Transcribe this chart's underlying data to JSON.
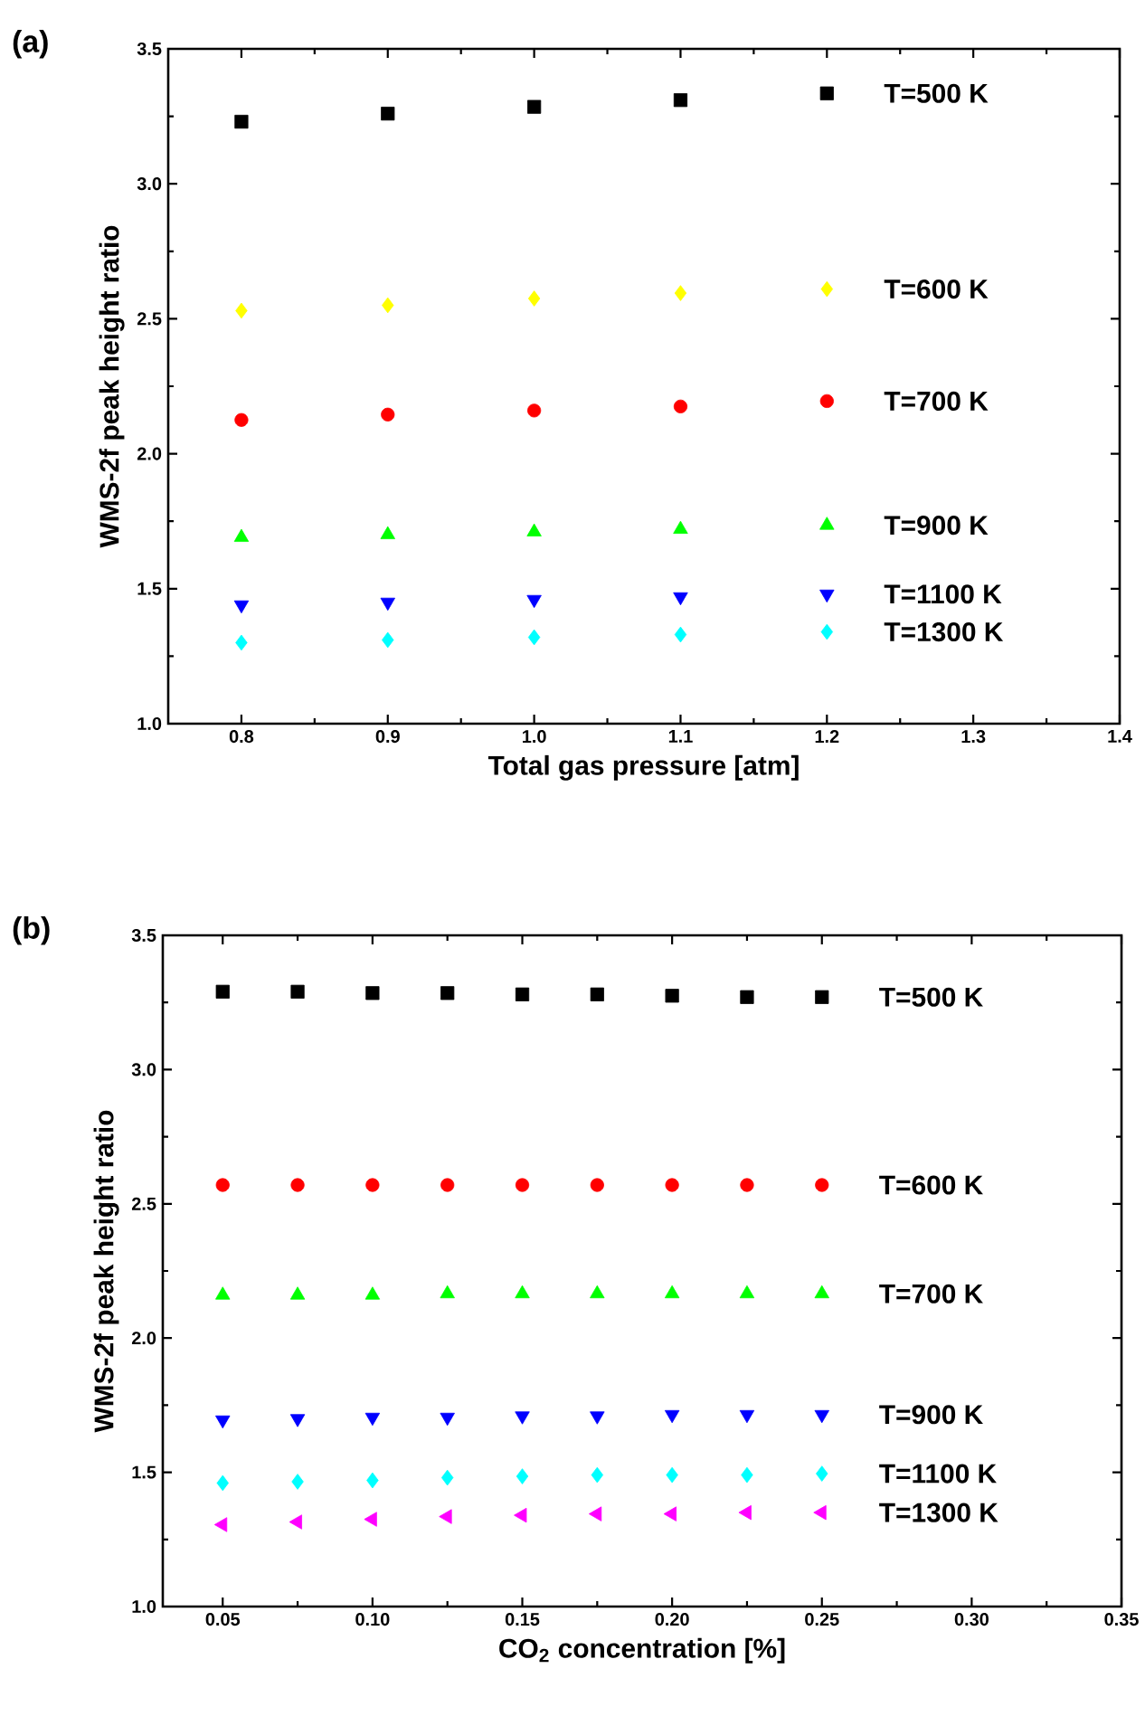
{
  "chart_data": [
    {
      "type": "scatter",
      "xlabel": "Total gas pressure [atm]",
      "ylabel": "WMS-2f peak height ratio",
      "annotations": [
        "(a)"
      ],
      "x": [
        0.8,
        0.9,
        1.0,
        1.1,
        1.2
      ],
      "xlim": [
        0.75,
        1.4
      ],
      "ylim": [
        1.0,
        3.5
      ],
      "xticks": [
        {
          "value": 0.8,
          "label": "0.8"
        },
        {
          "value": 0.9,
          "label": "0.9"
        },
        {
          "value": 1.0,
          "label": "1.0"
        },
        {
          "value": 1.1,
          "label": "1.1"
        },
        {
          "value": 1.2,
          "label": "1.2"
        },
        {
          "value": 1.3,
          "label": "1.3"
        },
        {
          "value": 1.4,
          "label": "1.4"
        }
      ],
      "yticks": [
        {
          "value": 1.0,
          "label": "1.0"
        },
        {
          "value": 1.5,
          "label": "1.5"
        },
        {
          "value": 2.0,
          "label": "2.0"
        },
        {
          "value": 2.5,
          "label": "2.5"
        },
        {
          "value": 3.0,
          "label": "3.0"
        },
        {
          "value": 3.5,
          "label": "3.5"
        }
      ],
      "series": [
        {
          "name": "T=500 K",
          "color": "#000000",
          "marker": "square",
          "values": [
            3.23,
            3.26,
            3.285,
            3.31,
            3.335
          ]
        },
        {
          "name": "T=600 K",
          "color": "#ffff00",
          "marker": "diamond",
          "values": [
            2.53,
            2.55,
            2.575,
            2.595,
            2.61
          ]
        },
        {
          "name": "T=700 K",
          "color": "#ff0000",
          "marker": "circle",
          "values": [
            2.125,
            2.145,
            2.16,
            2.175,
            2.195
          ]
        },
        {
          "name": "T=900 K",
          "color": "#00ff00",
          "marker": "triangle",
          "values": [
            1.69,
            1.7,
            1.71,
            1.72,
            1.735
          ]
        },
        {
          "name": "T=1100 K",
          "color": "#0000ff",
          "marker": "triangle-down",
          "values": [
            1.44,
            1.45,
            1.46,
            1.47,
            1.48
          ]
        },
        {
          "name": "T=1300 K",
          "color": "#00ffff",
          "marker": "diamond",
          "values": [
            1.3,
            1.31,
            1.32,
            1.33,
            1.34
          ]
        }
      ]
    },
    {
      "type": "scatter",
      "xlabel": "CO$_{2}$ concentration [%]",
      "ylabel": "WMS-2f peak height ratio",
      "annotations": [
        "(b)"
      ],
      "x": [
        0.05,
        0.075,
        0.1,
        0.125,
        0.15,
        0.175,
        0.2,
        0.225,
        0.25
      ],
      "xlim": [
        0.03,
        0.35
      ],
      "ylim": [
        1.0,
        3.5
      ],
      "xticks": [
        {
          "value": 0.05,
          "label": "0.05"
        },
        {
          "value": 0.1,
          "label": "0.10"
        },
        {
          "value": 0.15,
          "label": "0.15"
        },
        {
          "value": 0.2,
          "label": "0.20"
        },
        {
          "value": 0.25,
          "label": "0.25"
        },
        {
          "value": 0.3,
          "label": "0.30"
        },
        {
          "value": 0.35,
          "label": "0.35"
        }
      ],
      "yticks": [
        {
          "value": 1.0,
          "label": "1.0"
        },
        {
          "value": 1.5,
          "label": "1.5"
        },
        {
          "value": 2.0,
          "label": "2.0"
        },
        {
          "value": 2.5,
          "label": "2.5"
        },
        {
          "value": 3.0,
          "label": "3.0"
        },
        {
          "value": 3.5,
          "label": "3.5"
        }
      ],
      "series": [
        {
          "name": "T=500 K",
          "color": "#000000",
          "marker": "square",
          "values": [
            3.29,
            3.29,
            3.285,
            3.285,
            3.28,
            3.28,
            3.275,
            3.27,
            3.27
          ]
        },
        {
          "name": "T=600 K",
          "color": "#ff0000",
          "marker": "circle",
          "values": [
            2.57,
            2.57,
            2.57,
            2.57,
            2.57,
            2.57,
            2.57,
            2.57,
            2.57
          ]
        },
        {
          "name": "T=700 K",
          "color": "#00ff00",
          "marker": "triangle",
          "values": [
            2.16,
            2.16,
            2.16,
            2.165,
            2.165,
            2.165,
            2.165,
            2.165,
            2.165
          ]
        },
        {
          "name": "T=900 K",
          "color": "#0000ff",
          "marker": "triangle-down",
          "values": [
            1.695,
            1.7,
            1.705,
            1.705,
            1.71,
            1.71,
            1.715,
            1.715,
            1.715
          ]
        },
        {
          "name": "T=1100 K",
          "color": "#00ffff",
          "marker": "diamond",
          "values": [
            1.46,
            1.465,
            1.47,
            1.48,
            1.485,
            1.49,
            1.49,
            1.49,
            1.495
          ]
        },
        {
          "name": "T=1300 K",
          "color": "#ff00ff",
          "marker": "triangle-left",
          "values": [
            1.305,
            1.315,
            1.325,
            1.335,
            1.34,
            1.345,
            1.345,
            1.35,
            1.35
          ]
        }
      ]
    }
  ]
}
